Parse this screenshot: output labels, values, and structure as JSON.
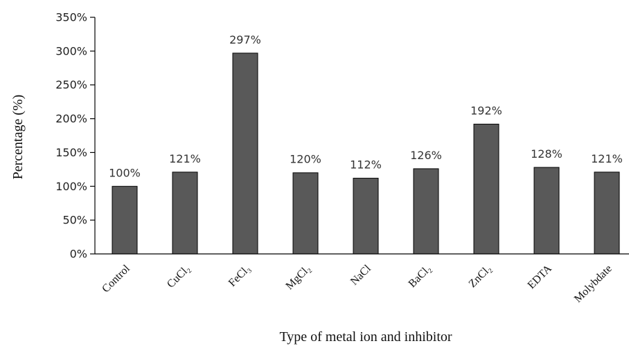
{
  "chart_data": {
    "type": "bar",
    "categories": [
      "Control",
      "CuCl₂",
      "FeCl₃",
      "MgCl₂",
      "NaCl",
      "BaCl₂",
      "ZnCl₂",
      "EDTA",
      "Molybdate"
    ],
    "values": [
      100,
      121,
      297,
      120,
      112,
      126,
      192,
      128,
      121
    ],
    "data_labels": [
      "100%",
      "121%",
      "297%",
      "120%",
      "112%",
      "126%",
      "192%",
      "128%",
      "121%"
    ],
    "title": "",
    "xlabel": "Type of metal ion and inhibitor",
    "ylabel": "Percentage (%)",
    "ylim": [
      0,
      350
    ],
    "yticks": [
      0,
      50,
      100,
      150,
      200,
      250,
      300,
      350
    ],
    "ytick_labels": [
      "0%",
      "50%",
      "100%",
      "150%",
      "200%",
      "250%",
      "300%",
      "350%"
    ],
    "bar_color": "#595959",
    "bar_edge_color": "#000000",
    "grid": false,
    "legend": "none"
  }
}
